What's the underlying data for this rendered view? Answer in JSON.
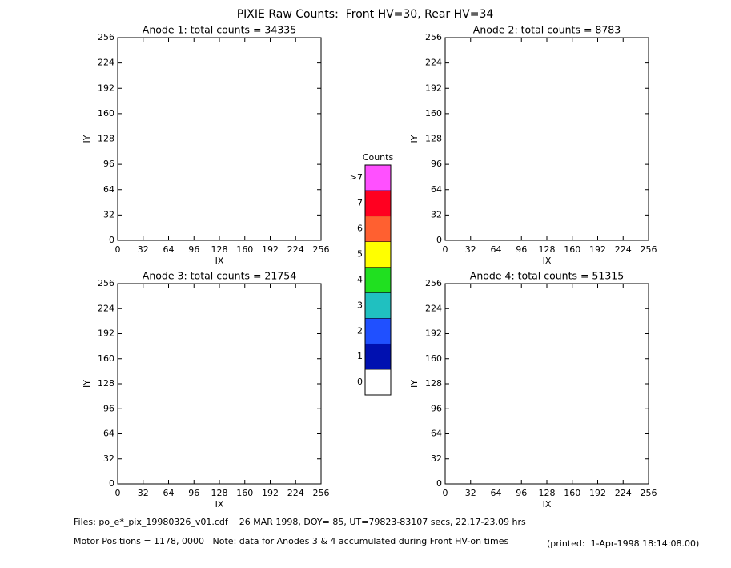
{
  "title": "PIXIE Raw Counts:  Front HV=30, Rear HV=34",
  "footer": [
    "Files: po_e*_pix_19980326_v01.cdf    26 MAR 1998, DOY= 85, UT=79823-83107 secs, 22.17-23.09 hrs",
    "Motor Positions = 1178, 0000   Note: data for Anodes 3 & 4 accumulated during Front HV-on times",
    "(printed:  1-Apr-1998 18:14:08.00)"
  ],
  "colorbar": {
    "title": "Counts",
    "categories": [
      "0",
      "1",
      "2",
      "3",
      "4",
      "5",
      "6",
      "7",
      ">7"
    ],
    "colors": [
      "#ffffff",
      "#0010b0",
      "#2050ff",
      "#20c0c0",
      "#20e020",
      "#ffff00",
      "#ff6030",
      "#ff0020",
      "#ff50ff"
    ]
  },
  "chart_data": [
    {
      "type": "heatmap",
      "title": "Anode 1: total counts = 34335",
      "xlabel": "IX",
      "ylabel": "IY",
      "xlim": [
        0,
        256
      ],
      "ylim": [
        0,
        256
      ],
      "xticks": [
        0,
        32,
        64,
        96,
        128,
        160,
        192,
        224,
        256
      ],
      "yticks": [
        0,
        32,
        64,
        96,
        128,
        160,
        192,
        224,
        256
      ]
    },
    {
      "type": "heatmap",
      "title": "Anode 2: total counts = 8783",
      "xlabel": "IX",
      "ylabel": "IY",
      "xlim": [
        0,
        256
      ],
      "ylim": [
        0,
        256
      ],
      "xticks": [
        0,
        32,
        64,
        96,
        128,
        160,
        192,
        224,
        256
      ],
      "yticks": [
        0,
        32,
        64,
        96,
        128,
        160,
        192,
        224,
        256
      ]
    },
    {
      "type": "heatmap",
      "title": "Anode 3: total counts = 21754",
      "xlabel": "IX",
      "ylabel": "IY",
      "xlim": [
        0,
        256
      ],
      "ylim": [
        0,
        256
      ],
      "xticks": [
        0,
        32,
        64,
        96,
        128,
        160,
        192,
        224,
        256
      ],
      "yticks": [
        0,
        32,
        64,
        96,
        128,
        160,
        192,
        224,
        256
      ]
    },
    {
      "type": "heatmap",
      "title": "Anode 4: total counts = 51315",
      "xlabel": "IX",
      "ylabel": "IY",
      "xlim": [
        0,
        256
      ],
      "ylim": [
        0,
        256
      ],
      "xticks": [
        0,
        32,
        64,
        96,
        128,
        160,
        192,
        224,
        256
      ],
      "yticks": [
        0,
        32,
        64,
        96,
        128,
        160,
        192,
        224,
        256
      ]
    }
  ]
}
